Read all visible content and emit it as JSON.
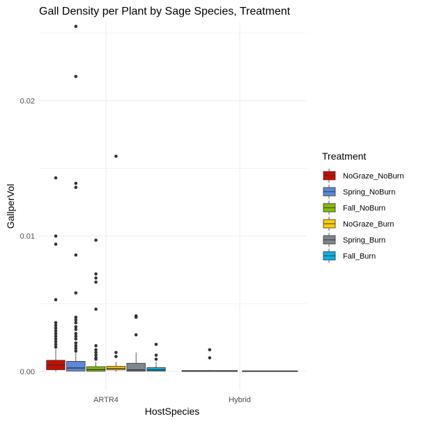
{
  "chart_data": {
    "type": "boxplot",
    "title": "Gall Density per Plant by Sage Species, Treatment",
    "xlabel": "HostSpecies",
    "ylabel": "GallperVol",
    "ylim": [
      -0.0014,
      0.0258
    ],
    "y_ticks": [
      {
        "value": 0.0,
        "label": "0.00"
      },
      {
        "value": 0.01,
        "label": "0.01"
      },
      {
        "value": 0.02,
        "label": "0.02"
      }
    ],
    "grid": true,
    "categories": [
      "ARTR4",
      "Hybrid"
    ],
    "legend": {
      "title": "Treatment",
      "placement": "right",
      "entries": [
        "NoGraze_NoBurn",
        "Spring_NoBurn",
        "Fall_NoBurn",
        "NoGraze_Burn",
        "Spring_Burn",
        "Fall_Burn"
      ]
    },
    "series": [
      {
        "name": "NoGraze_NoBurn",
        "color": "#cc0c00",
        "data": [
          {
            "category": "ARTR4",
            "min": 0.0,
            "q1": 0.00012,
            "median": 0.00045,
            "q3": 0.00082,
            "max": 0.00165,
            "outliers": [
              0.0143,
              0.01,
              0.0094,
              0.0053,
              0.0036,
              0.0034,
              0.0032,
              0.003,
              0.0028,
              0.0026,
              0.0024,
              0.0022,
              0.002,
              0.0018
            ]
          },
          {
            "category": "Hybrid",
            "min": 0.0,
            "q1": 0.0,
            "median": 2e-05,
            "q3": 6e-05,
            "max": 0.0001,
            "outliers": [
              0.0016,
              0.001
            ]
          }
        ]
      },
      {
        "name": "Spring_NoBurn",
        "color": "#5c88da",
        "data": [
          {
            "category": "ARTR4",
            "min": 0.0,
            "q1": 3e-05,
            "median": 0.00025,
            "q3": 0.00074,
            "max": 0.00135,
            "outliers": [
              0.0255,
              0.0218,
              0.0139,
              0.0136,
              0.0086,
              0.0058,
              0.004,
              0.0038,
              0.0036,
              0.0033,
              0.0031,
              0.0028,
              0.0026,
              0.0024,
              0.0021,
              0.0019,
              0.0017,
              0.0015
            ]
          }
        ]
      },
      {
        "name": "Fall_NoBurn",
        "color": "#84bd00",
        "data": [
          {
            "category": "ARTR4",
            "min": 0.0,
            "q1": 2e-05,
            "median": 0.00013,
            "q3": 0.00035,
            "max": 0.0007,
            "outliers": [
              0.0097,
              0.0072,
              0.0069,
              0.0066,
              0.0046,
              0.0019,
              0.0016,
              0.0014,
              0.0012,
              0.001,
              0.0009
            ]
          },
          {
            "category": "Hybrid",
            "min": 0.0,
            "q1": 0.0,
            "median": 1e-05,
            "q3": 4e-05,
            "max": 6e-05,
            "outliers": []
          }
        ]
      },
      {
        "name": "NoGraze_Burn",
        "color": "#ffcd00",
        "data": [
          {
            "category": "ARTR4",
            "min": 0.0,
            "q1": 0.00011,
            "median": 0.00022,
            "q3": 0.00038,
            "max": 0.0007,
            "outliers": [
              0.0159,
              0.0014,
              0.0011
            ]
          }
        ]
      },
      {
        "name": "Spring_Burn",
        "color": "#7c878e",
        "data": [
          {
            "category": "ARTR4",
            "min": 0.0,
            "q1": 2e-05,
            "median": 0.00011,
            "q3": 0.0006,
            "max": 0.0014,
            "outliers": [
              0.0041,
              0.004,
              0.0027
            ]
          }
        ]
      },
      {
        "name": "Fall_Burn",
        "color": "#00b5e2",
        "data": [
          {
            "category": "ARTR4",
            "min": 0.0,
            "q1": 3e-05,
            "median": 0.00011,
            "q3": 0.00028,
            "max": 0.0007,
            "outliers": [
              0.002,
              0.0012,
              0.0009
            ]
          }
        ]
      }
    ]
  }
}
